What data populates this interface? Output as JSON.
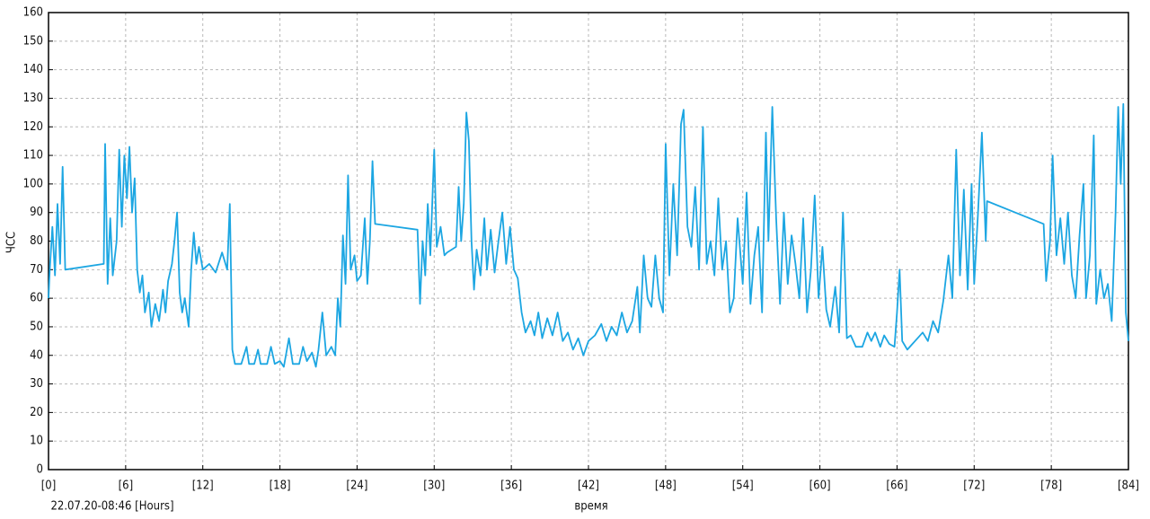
{
  "chart_data": {
    "type": "line",
    "y_label": "ЧСС",
    "x_label": "время",
    "annotation": "22.07.20-08:46 [Hours]",
    "xlim": [
      0,
      84
    ],
    "ylim": [
      0,
      160
    ],
    "xticks": [
      {
        "value": 0,
        "label": "[0]"
      },
      {
        "value": 6,
        "label": "[6]"
      },
      {
        "value": 12,
        "label": "[12]"
      },
      {
        "value": 18,
        "label": "[18]"
      },
      {
        "value": 24,
        "label": "[24]"
      },
      {
        "value": 30,
        "label": "[30]"
      },
      {
        "value": 36,
        "label": "[36]"
      },
      {
        "value": 42,
        "label": "[42]"
      },
      {
        "value": 48,
        "label": "[48]"
      },
      {
        "value": 54,
        "label": "[54]"
      },
      {
        "value": 60,
        "label": "[60]"
      },
      {
        "value": 66,
        "label": "[66]"
      },
      {
        "value": 72,
        "label": "[72]"
      },
      {
        "value": 78,
        "label": "[78]"
      },
      {
        "value": 84,
        "label": "[84]"
      }
    ],
    "yticks": [
      0,
      10,
      20,
      30,
      40,
      50,
      60,
      70,
      80,
      90,
      100,
      110,
      120,
      130,
      140,
      150,
      160
    ],
    "grid": true,
    "color": "#1ca6e2",
    "x": [
      0,
      0.1,
      0.3,
      0.5,
      0.7,
      0.9,
      1.1,
      1.3,
      4.3,
      4.4,
      4.6,
      4.8,
      5.0,
      5.3,
      5.5,
      5.7,
      5.9,
      6.1,
      6.3,
      6.5,
      6.7,
      6.9,
      7.1,
      7.3,
      7.5,
      7.8,
      8.0,
      8.3,
      8.6,
      8.9,
      9.1,
      9.3,
      9.6,
      9.8,
      10.0,
      10.2,
      10.4,
      10.6,
      10.9,
      11.1,
      11.3,
      11.5,
      11.7,
      12.0,
      12.5,
      13.0,
      13.5,
      13.9,
      14.1,
      14.3,
      14.5,
      15.0,
      15.4,
      15.6,
      16.0,
      16.3,
      16.5,
      17.0,
      17.3,
      17.6,
      18.0,
      18.3,
      18.7,
      19.0,
      19.5,
      19.8,
      20.1,
      20.5,
      20.8,
      21.0,
      21.3,
      21.6,
      22.0,
      22.3,
      22.5,
      22.7,
      22.9,
      23.1,
      23.3,
      23.5,
      23.8,
      24.0,
      24.3,
      24.6,
      24.8,
      25.0,
      25.2,
      25.4,
      28.7,
      28.9,
      29.1,
      29.3,
      29.5,
      29.7,
      30.0,
      30.2,
      30.5,
      30.8,
      31.0,
      31.7,
      31.9,
      32.1,
      32.3,
      32.5,
      32.7,
      32.9,
      33.1,
      33.3,
      33.6,
      33.9,
      34.1,
      34.4,
      34.7,
      35.0,
      35.3,
      35.6,
      35.9,
      36.2,
      36.5,
      36.8,
      37.1,
      37.5,
      37.8,
      38.1,
      38.4,
      38.8,
      39.2,
      39.6,
      40.0,
      40.4,
      40.8,
      41.2,
      41.6,
      42.0,
      42.5,
      43.0,
      43.4,
      43.8,
      44.2,
      44.6,
      45.0,
      45.4,
      45.8,
      46.0,
      46.3,
      46.6,
      46.9,
      47.2,
      47.5,
      47.8,
      48.0,
      48.3,
      48.6,
      48.9,
      49.2,
      49.4,
      49.7,
      50.0,
      50.3,
      50.6,
      50.9,
      51.2,
      51.5,
      51.8,
      52.1,
      52.4,
      52.7,
      53.0,
      53.3,
      53.6,
      54.0,
      54.3,
      54.6,
      54.9,
      55.2,
      55.5,
      55.8,
      56.0,
      56.3,
      56.6,
      56.9,
      57.2,
      57.5,
      57.8,
      58.1,
      58.4,
      58.7,
      59.0,
      59.3,
      59.6,
      59.9,
      60.2,
      60.5,
      60.8,
      61.2,
      61.5,
      61.8,
      62.1,
      62.4,
      62.8,
      63.3,
      63.7,
      64.0,
      64.3,
      64.7,
      65.0,
      65.4,
      65.8,
      66.0,
      66.2,
      66.4,
      66.8,
      67.2,
      67.6,
      68.0,
      68.4,
      68.8,
      69.2,
      69.6,
      70.0,
      70.3,
      70.6,
      70.9,
      71.2,
      71.5,
      71.8,
      72.0,
      72.3,
      72.6,
      72.9,
      73.0,
      77.4,
      77.6,
      77.9,
      78.1,
      78.4,
      78.7,
      79.0,
      79.3,
      79.6,
      79.9,
      80.2,
      80.5,
      80.7,
      81.0,
      81.3,
      81.5,
      81.8,
      82.1,
      82.4,
      82.7,
      83.0,
      83.2,
      83.4,
      83.6,
      83.8,
      84.0
    ],
    "values": [
      60,
      70,
      85,
      68,
      93,
      72,
      106,
      70,
      72,
      114,
      65,
      88,
      68,
      80,
      112,
      85,
      110,
      95,
      113,
      90,
      102,
      70,
      62,
      68,
      55,
      62,
      50,
      58,
      52,
      63,
      55,
      66,
      72,
      80,
      90,
      62,
      55,
      60,
      50,
      70,
      83,
      72,
      78,
      70,
      72,
      69,
      76,
      70,
      93,
      42,
      37,
      37,
      43,
      37,
      37,
      42,
      37,
      37,
      43,
      37,
      38,
      36,
      46,
      37,
      37,
      43,
      38,
      41,
      36,
      42,
      55,
      40,
      43,
      40,
      60,
      50,
      82,
      65,
      103,
      70,
      75,
      66,
      68,
      88,
      65,
      80,
      108,
      86,
      84,
      58,
      80,
      68,
      93,
      75,
      112,
      78,
      85,
      75,
      76,
      78,
      99,
      80,
      93,
      125,
      115,
      80,
      63,
      77,
      68,
      88,
      70,
      84,
      69,
      80,
      90,
      72,
      85,
      70,
      67,
      55,
      48,
      52,
      47,
      55,
      46,
      53,
      47,
      55,
      45,
      48,
      42,
      46,
      40,
      45,
      47,
      51,
      45,
      50,
      47,
      55,
      48,
      52,
      64,
      48,
      75,
      60,
      57,
      75,
      60,
      55,
      114,
      68,
      100,
      75,
      121,
      126,
      85,
      78,
      99,
      70,
      120,
      72,
      80,
      68,
      95,
      70,
      80,
      55,
      60,
      88,
      65,
      97,
      58,
      75,
      85,
      55,
      118,
      80,
      127,
      88,
      58,
      90,
      65,
      82,
      72,
      60,
      88,
      55,
      70,
      96,
      60,
      78,
      56,
      50,
      64,
      48,
      90,
      46,
      47,
      43,
      43,
      48,
      45,
      48,
      43,
      47,
      44,
      43,
      55,
      70,
      45,
      42,
      44,
      46,
      48,
      45,
      52,
      48,
      59,
      75,
      60,
      112,
      68,
      98,
      63,
      100,
      65,
      90,
      118,
      80,
      94,
      86,
      66,
      80,
      110,
      75,
      88,
      72,
      90,
      68,
      60,
      82,
      100,
      60,
      75,
      117,
      58,
      70,
      60,
      65,
      52,
      90,
      127,
      100,
      128,
      55,
      45
    ]
  }
}
